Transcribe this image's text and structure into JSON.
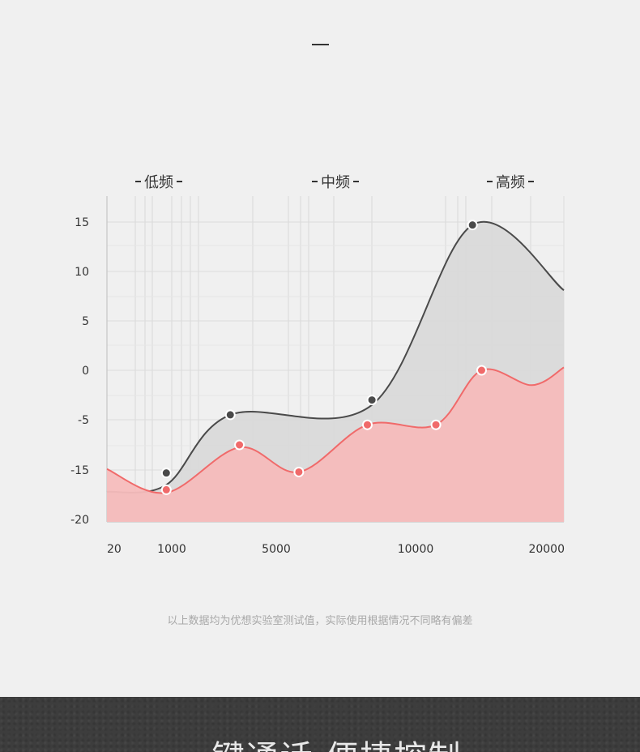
{
  "header": {
    "dash": "—"
  },
  "bands": {
    "low": "低频",
    "mid": "中频",
    "high": "高频"
  },
  "footnote": "以上数据均为优想实验室测试值，实际使用根据情况不同略有偏差",
  "banner": {
    "title": "一键通话 便捷控制"
  },
  "colors": {
    "background": "#f0f0f0",
    "grey_line": "#4a4a4a",
    "grey_fill": "#d9d9d9",
    "red_line": "#f06a6a",
    "red_fill": "#f5bcbc",
    "banner": "#3d3d3d"
  },
  "chart_data": {
    "type": "area",
    "title": "",
    "xlabel": "",
    "ylabel": "",
    "x_tick_labels": [
      "20",
      "1000",
      "5000",
      "10000",
      "20000"
    ],
    "y_tick_labels": [
      "15",
      "10",
      "5",
      "0",
      "-5",
      "-15",
      "-20"
    ],
    "grid": true,
    "series": [
      {
        "color": "#4a4a4a",
        "fill": "#d9d9d9",
        "curve_points": [
          [
            0.0,
            -17.2
          ],
          [
            0.13,
            -16.5
          ],
          [
            0.27,
            -4.5
          ],
          [
            0.58,
            -3.5
          ],
          [
            0.8,
            14.7
          ],
          [
            1.0,
            8.1
          ]
        ],
        "markers": [
          [
            0.13,
            -15.3
          ],
          [
            0.27,
            -4.5
          ],
          [
            0.58,
            -3.0
          ],
          [
            0.8,
            14.7
          ]
        ]
      },
      {
        "color": "#f06a6a",
        "fill": "#f5bcbc",
        "curve_points": [
          [
            0.0,
            -14.8
          ],
          [
            0.13,
            -17.3
          ],
          [
            0.29,
            -10.5
          ],
          [
            0.42,
            -15.2
          ],
          [
            0.57,
            -6.0
          ],
          [
            0.72,
            -6.0
          ],
          [
            0.82,
            0.0
          ],
          [
            0.93,
            -1.5
          ],
          [
            1.0,
            0.3
          ]
        ],
        "markers": [
          [
            0.13,
            -17.0
          ],
          [
            0.29,
            -10.0
          ],
          [
            0.42,
            -15.2
          ],
          [
            0.57,
            -6.0
          ],
          [
            0.72,
            -6.0
          ],
          [
            0.82,
            0.0
          ]
        ]
      }
    ]
  }
}
